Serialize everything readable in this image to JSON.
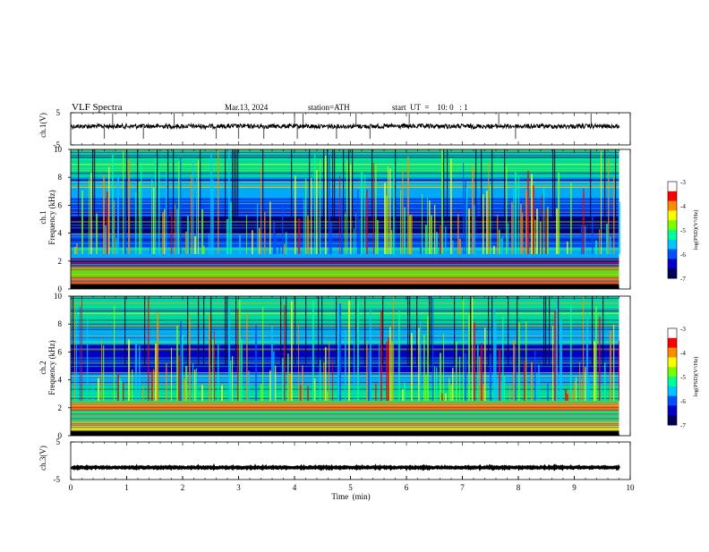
{
  "header": {
    "title": "VLF  Spectra",
    "date": "Mar.13, 2024",
    "station": "station=ATH",
    "start_ut": "start  UT  =    10: 0   : 1"
  },
  "colors": {
    "background": "#ffffff",
    "axis": "#000000",
    "waveform": "#000000",
    "colormap": [
      "#00005a",
      "#0000c8",
      "#0050ff",
      "#00c8ff",
      "#00ff96",
      "#78ff00",
      "#ffff00",
      "#ff8c00",
      "#ff0000",
      "#ffffff"
    ]
  },
  "chart_data": [
    {
      "type": "line",
      "panel": "ch1-waveform",
      "ylabel": "ch.1(V)",
      "ylim": [
        -5,
        5
      ],
      "yticks": [
        "5",
        "-5"
      ],
      "x_range_min": [
        0,
        9.8
      ],
      "baseline_v": 0.8,
      "spikes_down_min": [
        0.6,
        1.3,
        2.6,
        3.0,
        3.45,
        4.05,
        4.75,
        5.35,
        7.95
      ],
      "spikes_up_min": [
        0.75,
        1.85,
        4.0,
        4.15,
        5.1,
        6.05,
        7.65,
        9.3
      ]
    },
    {
      "type": "heatmap",
      "panel": "ch1-spectrogram",
      "ylabel": "Frequency  (kHz)",
      "ylabel_channel": "ch.1",
      "ylim_khz": [
        0,
        10
      ],
      "yticks": [
        "0",
        "2",
        "4",
        "6",
        "8",
        "10"
      ],
      "x_range_min": [
        0,
        9.8
      ],
      "colorbar": {
        "label": "log(PSD)(V²/Hz)",
        "range": [
          -7,
          -3
        ],
        "ticks": [
          "-3",
          "-4",
          "-5",
          "-6",
          "-7"
        ]
      },
      "bands_khz": [
        {
          "from": 0.0,
          "to": 0.8,
          "level": -3.6
        },
        {
          "from": 0.8,
          "to": 1.6,
          "level": -4.6
        },
        {
          "from": 1.6,
          "to": 2.2,
          "level": -6.2
        },
        {
          "from": 2.2,
          "to": 3.0,
          "level": -5.3
        },
        {
          "from": 3.0,
          "to": 4.0,
          "level": -5.9
        },
        {
          "from": 4.0,
          "to": 5.2,
          "level": -6.6
        },
        {
          "from": 5.2,
          "to": 6.5,
          "level": -5.9
        },
        {
          "from": 6.5,
          "to": 8.0,
          "level": -5.3
        },
        {
          "from": 8.0,
          "to": 10.0,
          "level": -4.8
        }
      ]
    },
    {
      "type": "heatmap",
      "panel": "ch2-spectrogram",
      "ylabel": "Frequency  (kHz)",
      "ylabel_channel": "ch.2",
      "ylim_khz": [
        0,
        10
      ],
      "yticks": [
        "0",
        "2",
        "4",
        "6",
        "8",
        "10"
      ],
      "x_range_min": [
        0,
        9.8
      ],
      "colorbar": {
        "label": "log(PSD)(V²/Hz)",
        "range": [
          -7,
          -3
        ],
        "ticks": [
          "-3",
          "-4",
          "-5",
          "-6",
          "-7"
        ]
      },
      "bands_khz": [
        {
          "from": 0.0,
          "to": 1.0,
          "level": -4.2
        },
        {
          "from": 1.0,
          "to": 1.8,
          "level": -4.8
        },
        {
          "from": 1.8,
          "to": 2.4,
          "level": -3.6
        },
        {
          "from": 2.4,
          "to": 3.6,
          "level": -5.0
        },
        {
          "from": 3.6,
          "to": 4.4,
          "level": -5.6
        },
        {
          "from": 4.4,
          "to": 6.5,
          "level": -6.3
        },
        {
          "from": 6.5,
          "to": 8.0,
          "level": -5.6
        },
        {
          "from": 8.0,
          "to": 10.0,
          "level": -5.1
        }
      ]
    },
    {
      "type": "line",
      "panel": "ch3-waveform",
      "ylabel": "ch.3(V)",
      "ylim": [
        -5,
        5
      ],
      "yticks": [
        "5",
        "-5"
      ],
      "x_range_min": [
        0,
        9.8
      ],
      "baseline_v": -1.8
    }
  ],
  "x_axis": {
    "label": "Time  (min)",
    "range": [
      0,
      10
    ],
    "ticks": [
      "0",
      "1",
      "2",
      "3",
      "4",
      "5",
      "6",
      "7",
      "8",
      "9",
      "10"
    ]
  }
}
